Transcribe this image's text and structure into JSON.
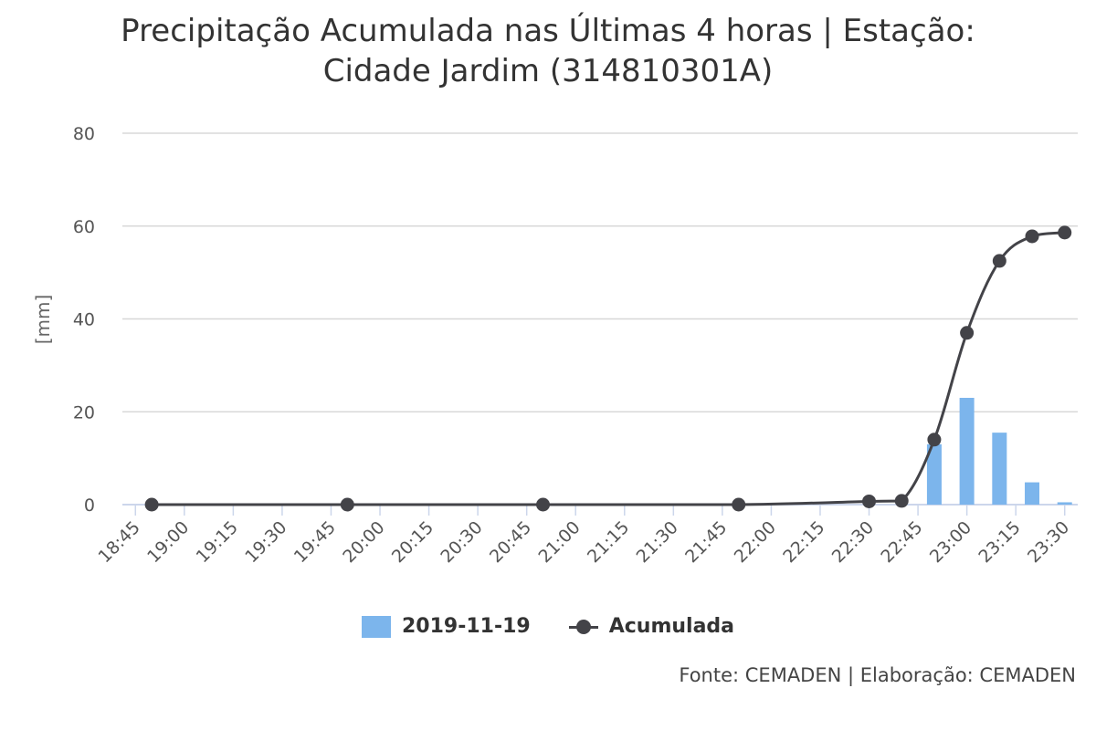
{
  "chart_data": {
    "type": "bar",
    "title_line1": "Precipitação Acumulada nas Últimas 4 horas | Estação:",
    "title_line2": "Cidade Jardim (314810301A)",
    "ylabel": "[mm]",
    "xlabel": "",
    "ylim": [
      0,
      80
    ],
    "yticks": [
      "0",
      "20",
      "40",
      "60",
      "80"
    ],
    "categories": [
      "18:45",
      "19:00",
      "19:15",
      "19:30",
      "19:45",
      "20:00",
      "20:15",
      "20:30",
      "20:45",
      "21:00",
      "21:15",
      "21:30",
      "21:45",
      "22:00",
      "22:15",
      "22:30",
      "22:45",
      "23:00",
      "23:15",
      "23:30"
    ],
    "grid": true,
    "legend_position": "bottom-center",
    "series": [
      {
        "name": "2019-11-19",
        "type": "bar",
        "color": "#7cb5ec",
        "points": [
          {
            "t": "22:50",
            "v": 13
          },
          {
            "t": "23:00",
            "v": 23
          },
          {
            "t": "23:10",
            "v": 15.5
          },
          {
            "t": "23:20",
            "v": 4.8
          },
          {
            "t": "23:30",
            "v": 0.5
          }
        ]
      },
      {
        "name": "Acumulada",
        "type": "line",
        "color": "#434348",
        "points": [
          {
            "t": "18:50",
            "v": 0
          },
          {
            "t": "19:50",
            "v": 0
          },
          {
            "t": "20:50",
            "v": 0
          },
          {
            "t": "21:50",
            "v": 0
          },
          {
            "t": "22:30",
            "v": 0.7
          },
          {
            "t": "22:40",
            "v": 0.8
          },
          {
            "t": "22:50",
            "v": 14
          },
          {
            "t": "23:00",
            "v": 37
          },
          {
            "t": "23:10",
            "v": 52.5
          },
          {
            "t": "23:20",
            "v": 57.8
          },
          {
            "t": "23:30",
            "v": 58.6
          }
        ]
      }
    ],
    "credits": "Fonte: CEMADEN | Elaboração: CEMADEN"
  }
}
